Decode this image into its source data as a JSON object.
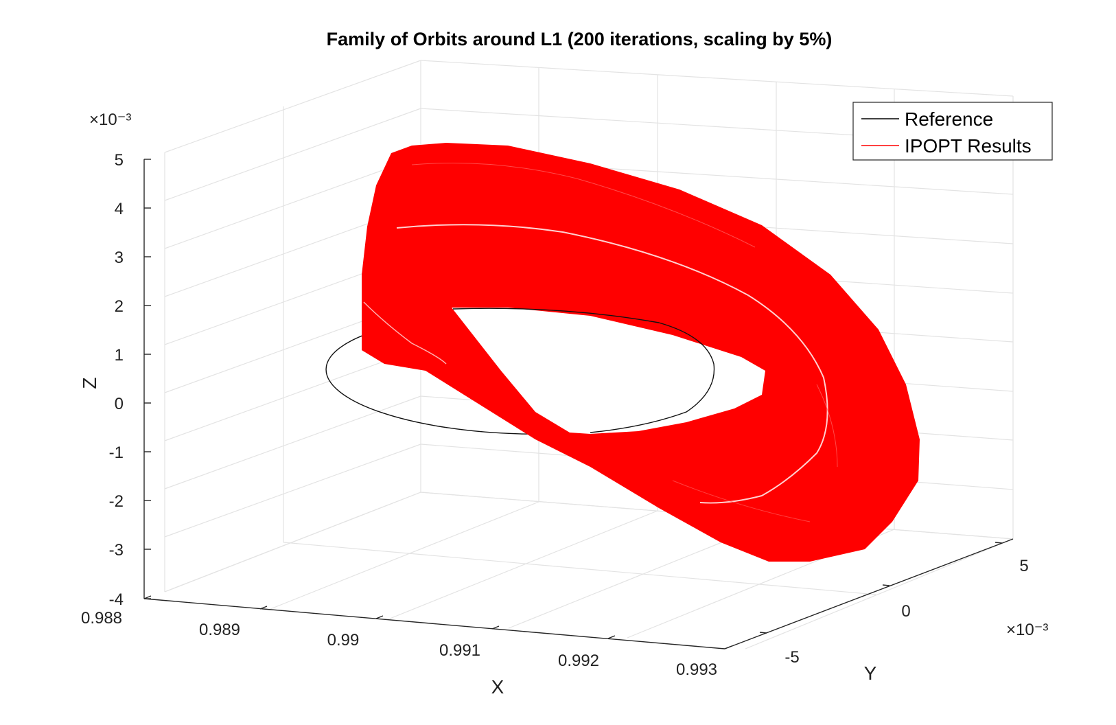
{
  "chart_data": {
    "type": "surface3d",
    "title": "Family of Orbits around L1 (200 iterations, scaling by 5%)",
    "xlabel": "X",
    "ylabel": "Y",
    "zlabel": "Z",
    "x_ticks": [
      "0.988",
      "0.989",
      "0.99",
      "0.991",
      "0.992",
      "0.993"
    ],
    "y_ticks": [
      "-5",
      "0",
      "5"
    ],
    "z_ticks": [
      "5",
      "4",
      "3",
      "2",
      "1",
      "0",
      "-1",
      "-2",
      "-3",
      "-4"
    ],
    "y_exponent": "×10⁻³",
    "z_exponent": "×10⁻³",
    "xlim": [
      0.988,
      0.993
    ],
    "ylim": [
      -0.007,
      0.007
    ],
    "zlim": [
      -0.004,
      0.005
    ],
    "grid": true,
    "legend_position": "top-right",
    "series": [
      {
        "name": "Reference",
        "color": "#000000",
        "shape": "planar ellipse near Z = 0"
      },
      {
        "name": "IPOPT Results",
        "color": "#ff0000",
        "shape": "band of 200 scaled orbits (5% scaling per iteration)"
      }
    ]
  }
}
